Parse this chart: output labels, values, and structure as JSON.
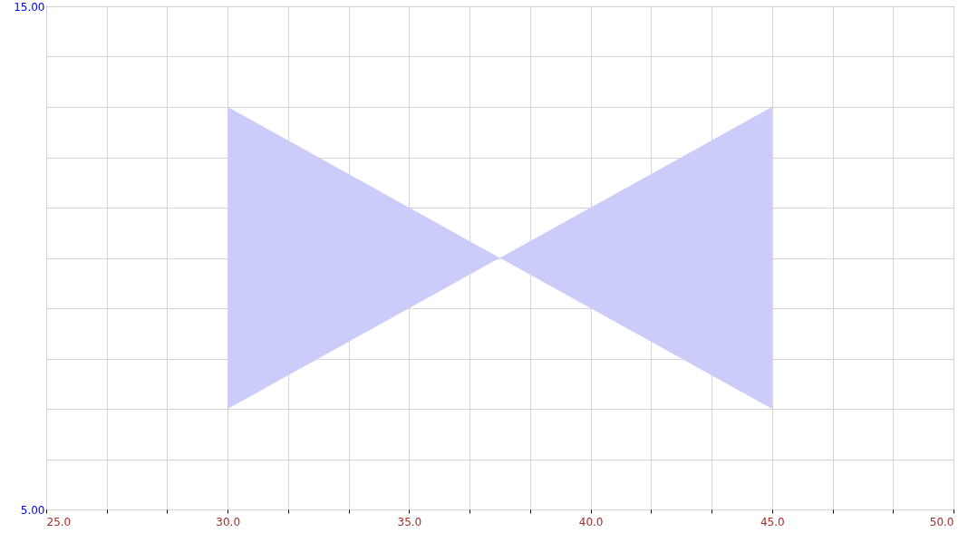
{
  "chart_data": {
    "type": "line",
    "series": [
      {
        "color": "#ccccfa",
        "x": [
          30,
          37.5,
          45
        ],
        "values": [
          null,
          null,
          null
        ],
        "lower": [
          7,
          10,
          7
        ],
        "upper": [
          13,
          10,
          13
        ]
      }
    ],
    "xlim": [
      25,
      50
    ],
    "xticks": [
      {
        "value": 25,
        "label": "25.0"
      },
      {
        "value": 26.667,
        "label": null
      },
      {
        "value": 28.333,
        "label": null
      },
      {
        "value": 30,
        "label": "30.0"
      },
      {
        "value": 31.667,
        "label": null
      },
      {
        "value": 33.333,
        "label": null
      },
      {
        "value": 35,
        "label": "35.0"
      },
      {
        "value": 36.667,
        "label": null
      },
      {
        "value": 38.333,
        "label": null
      },
      {
        "value": 40,
        "label": "40.0"
      },
      {
        "value": 41.667,
        "label": null
      },
      {
        "value": 43.333,
        "label": null
      },
      {
        "value": 45,
        "label": "45.0"
      },
      {
        "value": 46.667,
        "label": null
      },
      {
        "value": 48.333,
        "label": null
      },
      {
        "value": 50,
        "label": "50.0"
      }
    ],
    "ylim": [
      5,
      15
    ],
    "yticks": [
      {
        "value": 5,
        "label": "5.00"
      },
      {
        "value": 6,
        "label": null
      },
      {
        "value": 7,
        "label": null
      },
      {
        "value": 8,
        "label": null
      },
      {
        "value": 9,
        "label": null
      },
      {
        "value": 10,
        "label": null
      },
      {
        "value": 11,
        "label": null
      },
      {
        "value": 12,
        "label": null
      },
      {
        "value": 13,
        "label": null
      },
      {
        "value": 14,
        "label": null
      },
      {
        "value": 15,
        "label": "15.00"
      }
    ],
    "grid": true
  }
}
